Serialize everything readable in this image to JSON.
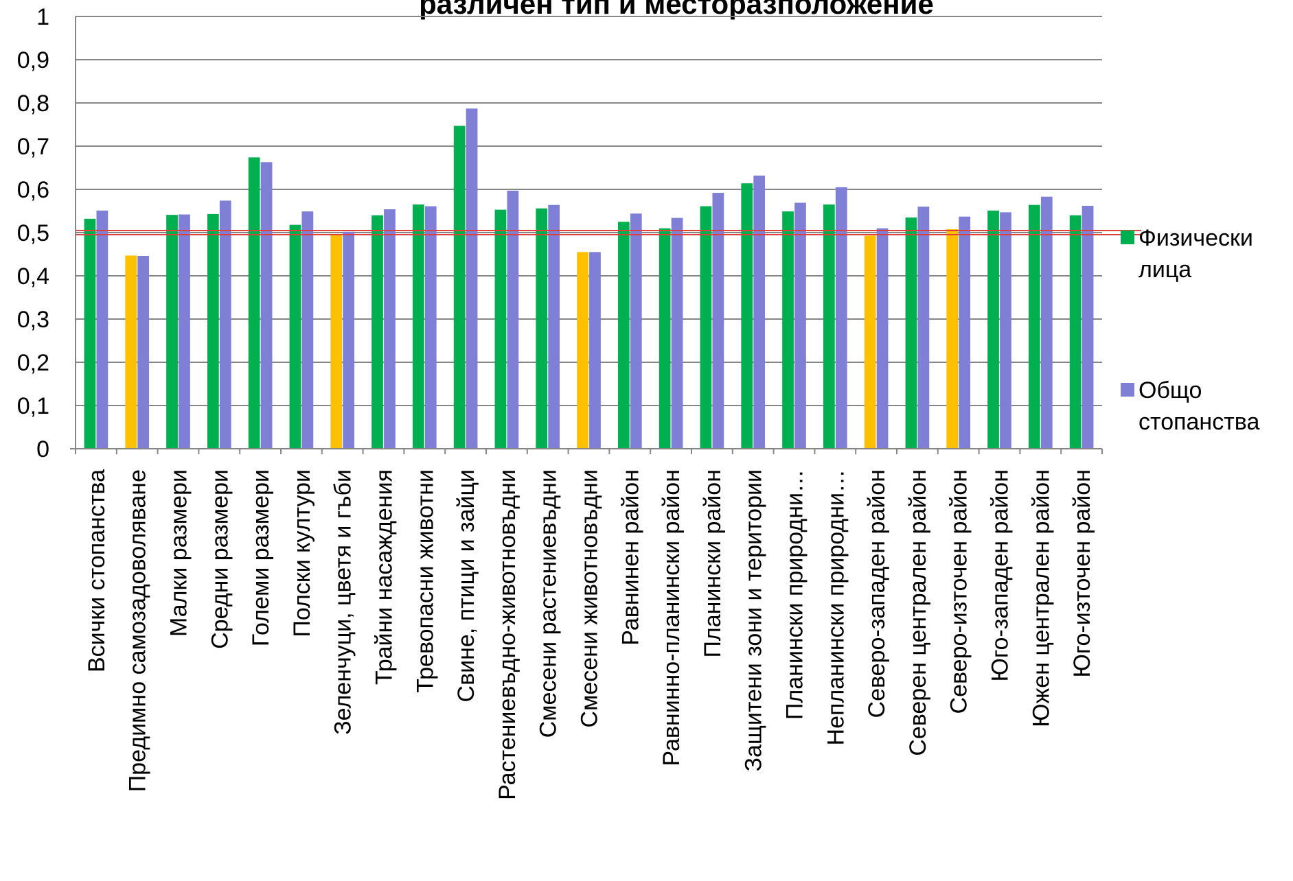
{
  "chart_data": {
    "type": "bar",
    "title": "различен тип и месторазположение",
    "ylim": [
      0,
      1
    ],
    "y_ticks": [
      "0",
      "0,1",
      "0,2",
      "0,3",
      "0,4",
      "0,5",
      "0,6",
      "0,7",
      "0,8",
      "0,9",
      "1"
    ],
    "grid": true,
    "reference_line": 0.5,
    "categories": [
      "Всички стопанства",
      "Предимно самозадоволяване",
      "Малки размери",
      "Средни размери",
      "Големи размери",
      "Полски култури",
      "Зеленчуци, цветя и гъби",
      "Трайни насаждения",
      "Тревопасни животни",
      "Свине, птици и зайци",
      "Растениевъдно-животновъдни",
      "Смесени растениевъдни",
      "Смесени животновъдни",
      "Равнинен район",
      "Равнинно-планински район",
      "Планински район",
      "Защитени зони и територии",
      "Планински природни…",
      "Непланински природни…",
      "Северо-западен район",
      "Северен централен район",
      "Северо-източен район",
      "Юго-западен район",
      "Южен централен район",
      "Юго-източен район"
    ],
    "series": [
      {
        "name": "Физически лица",
        "color": "#00B050",
        "values": [
          0.532,
          0.447,
          0.541,
          0.543,
          0.674,
          0.518,
          0.496,
          0.54,
          0.565,
          0.747,
          0.553,
          0.556,
          0.455,
          0.525,
          0.51,
          0.561,
          0.614,
          0.549,
          0.565,
          0.493,
          0.535,
          0.508,
          0.551,
          0.564,
          0.54
        ]
      },
      {
        "name": "Общо стопанства",
        "color": "#7F7FD5",
        "values": [
          0.551,
          0.446,
          0.542,
          0.574,
          0.663,
          0.549,
          0.502,
          0.554,
          0.561,
          0.787,
          0.597,
          0.564,
          0.455,
          0.544,
          0.534,
          0.592,
          0.632,
          0.569,
          0.605,
          0.51,
          0.56,
          0.537,
          0.547,
          0.583,
          0.562
        ]
      }
    ],
    "highlight_color": "#FFC000",
    "highlighted_categories": [
      1,
      6,
      12,
      19,
      21
    ],
    "legend": {
      "placement": "right",
      "entries": [
        {
          "lines": [
            "Физически",
            "лица"
          ],
          "color": "#00B050"
        },
        {
          "lines": [
            "Общо",
            "стопанства"
          ],
          "color": "#7F7FD5"
        }
      ]
    }
  }
}
